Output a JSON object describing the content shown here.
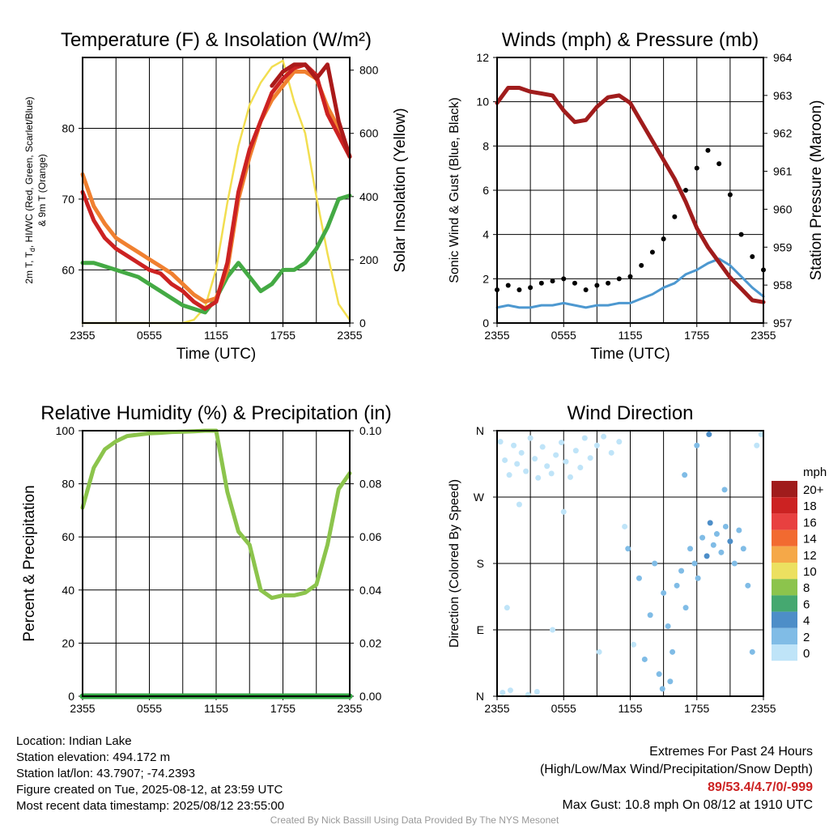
{
  "colors": {
    "temperature": "#cc2222",
    "dewpoint": "#44aa44",
    "heat_index": "#aa1a1a",
    "temp_9m": "#f08030",
    "solar": "#f2de50",
    "wind_speed": "#4d98d0",
    "wind_gust": "#000000",
    "pressure": "#a01c1c",
    "humidity": "#8cc44c",
    "precip": "#35a845"
  },
  "chart_data": [
    {
      "type": "line",
      "title": "Temperature (F) & Insolation (W/m²)",
      "xlabel": "Time (UTC)",
      "ylabel": "2m T, Td, HI/WC (Red, Green, Scarlet/Blue) & 9m T (Orange)",
      "ylabel_line1": "2m T, T",
      "ylabel_sub": "d",
      "ylabel_line1b": ", HI/WC (Red, Green, Scarlet/Blue)",
      "ylabel_line2": "& 9m T (Orange)",
      "y2label": "Solar Insolation (Yellow)",
      "x_ticks": [
        "2355",
        "0555",
        "1155",
        "1755",
        "2355"
      ],
      "ylim": [
        52.5,
        90
      ],
      "y_ticks": [
        60,
        70,
        80
      ],
      "y2lim": [
        0,
        840
      ],
      "y2_ticks": [
        0,
        200,
        400,
        600,
        800
      ],
      "x_hours": [
        0,
        1,
        2,
        3,
        4,
        5,
        6,
        7,
        8,
        9,
        10,
        11,
        12,
        13,
        14,
        15,
        16,
        17,
        18,
        19,
        20,
        21,
        22,
        23,
        24
      ],
      "series": [
        {
          "name": "9m T",
          "axis": "left",
          "values": [
            73.5,
            69,
            66.5,
            64.5,
            63.5,
            62.5,
            61.5,
            60.5,
            59.5,
            58,
            56.5,
            55.5,
            56,
            60,
            70,
            76,
            81,
            84,
            86,
            88,
            88,
            87,
            83,
            80,
            76
          ]
        },
        {
          "name": "2m T",
          "axis": "left",
          "values": [
            71,
            67,
            64.5,
            63,
            62,
            61,
            60,
            59.5,
            58,
            57,
            55.5,
            54.5,
            55.5,
            61,
            71,
            77,
            81,
            85,
            87,
            88.5,
            89,
            87.5,
            82,
            79,
            76
          ]
        },
        {
          "name": "HI",
          "axis": "left",
          "values": [
            null,
            null,
            null,
            null,
            null,
            null,
            null,
            null,
            null,
            null,
            null,
            null,
            null,
            null,
            null,
            null,
            null,
            86,
            88,
            89,
            89,
            87,
            89,
            81,
            76
          ]
        },
        {
          "name": "Td",
          "axis": "left",
          "values": [
            61,
            61,
            60.5,
            60,
            59.5,
            59,
            58,
            57,
            56,
            55,
            54.5,
            54,
            56,
            59,
            61,
            59,
            57,
            58,
            60,
            60,
            61,
            63,
            66,
            70,
            70.5
          ]
        },
        {
          "name": "Solar",
          "axis": "right",
          "values": [
            0,
            0,
            0,
            0,
            0,
            0,
            0,
            0,
            0,
            0,
            10,
            50,
            170,
            380,
            560,
            690,
            760,
            810,
            830,
            700,
            600,
            400,
            220,
            60,
            10
          ]
        }
      ]
    },
    {
      "type": "line",
      "title": "Winds (mph) & Pressure (mb)",
      "xlabel": "Time (UTC)",
      "ylabel": "Sonic Wind & Gust (Blue, Black)",
      "y2label": "Station Pressure (Maroon)",
      "x_ticks": [
        "2355",
        "0555",
        "1155",
        "1755",
        "2355"
      ],
      "ylim": [
        0,
        12
      ],
      "y_ticks": [
        0,
        2,
        4,
        6,
        8,
        10,
        12
      ],
      "y2lim": [
        957,
        964
      ],
      "y2_ticks": [
        957,
        958,
        959,
        960,
        961,
        962,
        963,
        964
      ],
      "x_hours": [
        0,
        1,
        2,
        3,
        4,
        5,
        6,
        7,
        8,
        9,
        10,
        11,
        12,
        13,
        14,
        15,
        16,
        17,
        18,
        19,
        20,
        21,
        22,
        23,
        24
      ],
      "series": [
        {
          "name": "Pressure",
          "axis": "right",
          "values": [
            962.8,
            963.2,
            963.2,
            963.1,
            963.05,
            963,
            962.6,
            962.3,
            962.35,
            962.7,
            962.95,
            963,
            962.8,
            962.3,
            961.8,
            961.3,
            960.8,
            960.2,
            959.5,
            959,
            958.6,
            958.2,
            957.9,
            957.6,
            957.55
          ]
        },
        {
          "name": "Wind",
          "axis": "left",
          "values": [
            0.7,
            0.8,
            0.7,
            0.7,
            0.8,
            0.8,
            0.9,
            0.8,
            0.7,
            0.8,
            0.8,
            0.9,
            0.9,
            1.1,
            1.3,
            1.6,
            1.8,
            2.2,
            2.4,
            2.7,
            2.9,
            2.6,
            2.1,
            1.6,
            1.2
          ]
        },
        {
          "name": "Gust",
          "axis": "left",
          "values": [
            1.5,
            1.7,
            1.5,
            1.6,
            1.8,
            1.9,
            2.0,
            1.8,
            1.5,
            1.7,
            1.8,
            2.0,
            2.1,
            2.6,
            3.2,
            3.8,
            4.8,
            6.0,
            7.0,
            7.8,
            7.2,
            5.8,
            4.0,
            3.0,
            2.4
          ]
        }
      ],
      "annotations": [
        "Max Gust: 10.8 mph"
      ]
    },
    {
      "type": "line",
      "title": "Relative Humidity (%) & Precipitation (in)",
      "ylabel": "Percent & Precipitation",
      "x_ticks": [
        "2355",
        "0555",
        "1155",
        "1755",
        "2355"
      ],
      "ylim": [
        0,
        100
      ],
      "y_ticks": [
        0,
        20,
        40,
        60,
        80,
        100
      ],
      "y2lim": [
        0,
        0.1
      ],
      "y2_ticks": [
        "0.00",
        "0.02",
        "0.04",
        "0.06",
        "0.08",
        "0.10"
      ],
      "x_hours": [
        0,
        1,
        2,
        3,
        4,
        5,
        6,
        7,
        8,
        9,
        10,
        11,
        12,
        13,
        14,
        15,
        16,
        17,
        18,
        19,
        20,
        21,
        22,
        23,
        24
      ],
      "series": [
        {
          "name": "RH",
          "axis": "left",
          "values": [
            71,
            86,
            93,
            96,
            98,
            98.5,
            99,
            99.2,
            99.5,
            99.6,
            99.8,
            100,
            100,
            77,
            62,
            57,
            40,
            37,
            38,
            38,
            39,
            42,
            57,
            78,
            84
          ]
        },
        {
          "name": "Precip",
          "axis": "right",
          "values": [
            0,
            0,
            0,
            0,
            0,
            0,
            0,
            0,
            0,
            0,
            0,
            0,
            0,
            0,
            0,
            0,
            0,
            0,
            0,
            0,
            0,
            0,
            0,
            0,
            0
          ]
        }
      ]
    },
    {
      "type": "scatter",
      "title": "Wind Direction",
      "ylabel": "Direction (Colored By Speed)",
      "x_ticks": [
        "2355",
        "0555",
        "1155",
        "1755",
        "2355"
      ],
      "y_ticks": [
        "N",
        "E",
        "S",
        "W",
        "N"
      ],
      "ylim": [
        0,
        360
      ],
      "legend_title": "mph",
      "legend_labels": [
        "20+",
        "18",
        "16",
        "14",
        "12",
        "10",
        "8",
        "6",
        "4",
        "2",
        "0"
      ],
      "legend_colors": [
        "#a01c1c",
        "#cc2222",
        "#e84040",
        "#f26a30",
        "#f5a848",
        "#ece060",
        "#8cc44c",
        "#45a870",
        "#4d8ec8",
        "#80bce6",
        "#bfe4f8"
      ],
      "points": [
        {
          "t": 0.3,
          "dir": 345,
          "spd": 0.5
        },
        {
          "t": 0.7,
          "dir": 320,
          "spd": 0.4
        },
        {
          "t": 1.1,
          "dir": 300,
          "spd": 0.6
        },
        {
          "t": 1.5,
          "dir": 340,
          "spd": 0.7
        },
        {
          "t": 1.8,
          "dir": 315,
          "spd": 0.6
        },
        {
          "t": 2.2,
          "dir": 330,
          "spd": 0.8
        },
        {
          "t": 2.6,
          "dir": 305,
          "spd": 0.9
        },
        {
          "t": 3.0,
          "dir": 350,
          "spd": 0.7
        },
        {
          "t": 3.4,
          "dir": 322,
          "spd": 0.5
        },
        {
          "t": 3.7,
          "dir": 296,
          "spd": 0.6
        },
        {
          "t": 4.1,
          "dir": 338,
          "spd": 0.8
        },
        {
          "t": 4.5,
          "dir": 312,
          "spd": 0.7
        },
        {
          "t": 4.9,
          "dir": 302,
          "spd": 0.6
        },
        {
          "t": 5.3,
          "dir": 327,
          "spd": 0.9
        },
        {
          "t": 5.8,
          "dir": 344,
          "spd": 0.8
        },
        {
          "t": 6.2,
          "dir": 318,
          "spd": 0.7
        },
        {
          "t": 6.6,
          "dir": 297,
          "spd": 0.6
        },
        {
          "t": 7.1,
          "dir": 333,
          "spd": 0.9
        },
        {
          "t": 7.5,
          "dir": 310,
          "spd": 0.8
        },
        {
          "t": 7.9,
          "dir": 350,
          "spd": 0.6
        },
        {
          "t": 8.4,
          "dir": 323,
          "spd": 0.7
        },
        {
          "t": 9.0,
          "dir": 340,
          "spd": 0.5
        },
        {
          "t": 9.6,
          "dir": 352,
          "spd": 0.6
        },
        {
          "t": 10.3,
          "dir": 330,
          "spd": 0.7
        },
        {
          "t": 11.0,
          "dir": 345,
          "spd": 0.6
        },
        {
          "t": 0.5,
          "dir": 5,
          "spd": 0.4
        },
        {
          "t": 1.2,
          "dir": 8,
          "spd": 0.5
        },
        {
          "t": 2.8,
          "dir": 2,
          "spd": 0.6
        },
        {
          "t": 3.6,
          "dir": 6,
          "spd": 0.5
        },
        {
          "t": 0.9,
          "dir": 120,
          "spd": 0.5
        },
        {
          "t": 2.0,
          "dir": 260,
          "spd": 0.6
        },
        {
          "t": 5.0,
          "dir": 90,
          "spd": 0.7
        },
        {
          "t": 6.0,
          "dir": 250,
          "spd": 0.6
        },
        {
          "t": 9.2,
          "dir": 60,
          "spd": 0.5
        },
        {
          "t": 11.5,
          "dir": 230,
          "spd": 0.9
        },
        {
          "t": 11.8,
          "dir": 200,
          "spd": 1.0
        },
        {
          "t": 12.3,
          "dir": 70,
          "spd": 0.8
        },
        {
          "t": 12.8,
          "dir": 160,
          "spd": 1.0
        },
        {
          "t": 13.3,
          "dir": 50,
          "spd": 1.2
        },
        {
          "t": 13.8,
          "dir": 110,
          "spd": 1.1
        },
        {
          "t": 14.2,
          "dir": 180,
          "spd": 1.6
        },
        {
          "t": 14.6,
          "dir": 30,
          "spd": 1.8
        },
        {
          "t": 15.0,
          "dir": 140,
          "spd": 1.5
        },
        {
          "t": 15.4,
          "dir": 95,
          "spd": 1.7
        },
        {
          "t": 15.8,
          "dir": 60,
          "spd": 1.6
        },
        {
          "t": 16.2,
          "dir": 150,
          "spd": 1.9
        },
        {
          "t": 16.6,
          "dir": 170,
          "spd": 2.0
        },
        {
          "t": 17.0,
          "dir": 120,
          "spd": 1.8
        },
        {
          "t": 17.4,
          "dir": 200,
          "spd": 2.4
        },
        {
          "t": 17.8,
          "dir": 180,
          "spd": 2.6
        },
        {
          "t": 18.1,
          "dir": 160,
          "spd": 2.1
        },
        {
          "t": 18.5,
          "dir": 215,
          "spd": 2.9
        },
        {
          "t": 18.9,
          "dir": 190,
          "spd": 3.2
        },
        {
          "t": 19.2,
          "dir": 235,
          "spd": 3.0
        },
        {
          "t": 19.5,
          "dir": 205,
          "spd": 2.7
        },
        {
          "t": 19.8,
          "dir": 220,
          "spd": 2.8
        },
        {
          "t": 20.2,
          "dir": 195,
          "spd": 2.5
        },
        {
          "t": 20.6,
          "dir": 230,
          "spd": 2.9
        },
        {
          "t": 21.0,
          "dir": 210,
          "spd": 3.1
        },
        {
          "t": 21.4,
          "dir": 180,
          "spd": 2.4
        },
        {
          "t": 21.8,
          "dir": 225,
          "spd": 2.2
        },
        {
          "t": 22.2,
          "dir": 200,
          "spd": 1.9
        },
        {
          "t": 22.6,
          "dir": 150,
          "spd": 1.4
        },
        {
          "t": 23.0,
          "dir": 60,
          "spd": 1.2
        },
        {
          "t": 23.4,
          "dir": 340,
          "spd": 0.8
        },
        {
          "t": 23.8,
          "dir": 355,
          "spd": 0.7
        },
        {
          "t": 18.0,
          "dir": 340,
          "spd": 2.3
        },
        {
          "t": 19.1,
          "dir": 355,
          "spd": 3.1
        },
        {
          "t": 15.6,
          "dir": 20,
          "spd": 2.2
        },
        {
          "t": 16.9,
          "dir": 300,
          "spd": 1.9
        },
        {
          "t": 20.5,
          "dir": 280,
          "spd": 2.5
        },
        {
          "t": 14.9,
          "dir": 10,
          "spd": 2.0
        }
      ]
    }
  ],
  "info": {
    "location": "Location: Indian Lake",
    "elevation": "Station elevation: 494.172 m",
    "latlon": "Station lat/lon: 43.7907; -74.2393",
    "created": "Figure created on Tue, 2025-08-12, at 23:59 UTC",
    "recent": "Most recent data timestamp: 2025/08/12 23:55:00"
  },
  "extremes": {
    "heading": "Extremes For Past 24 Hours",
    "subheading": "(High/Low/Max Wind/Precipitation/Snow Depth)",
    "values": "89/53.4/4.7/0/-999",
    "gust": "Max Gust: 10.8 mph On 08/12 at 1910 UTC"
  },
  "credit": "Created By Nick Bassill Using Data Provided By The NYS Mesonet"
}
